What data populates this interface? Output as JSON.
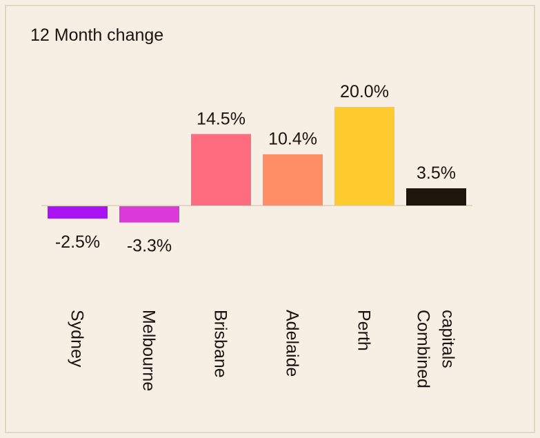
{
  "title": "12 Month change",
  "chart_data": {
    "type": "bar",
    "title": "12 Month change",
    "categories": [
      "Sydney",
      "Melbourne",
      "Brisbane",
      "Adelaide",
      "Perth",
      "Combined capitals"
    ],
    "category_lines": [
      [
        "Sydney"
      ],
      [
        "Melbourne"
      ],
      [
        "Brisbane"
      ],
      [
        "Adelaide"
      ],
      [
        "Perth"
      ],
      [
        "Combined",
        "capitals"
      ]
    ],
    "values": [
      -2.5,
      -3.3,
      14.5,
      10.4,
      20.0,
      3.5
    ],
    "value_labels": [
      "-2.5%",
      "-3.3%",
      "14.5%",
      "10.4%",
      "20.0%",
      "3.5%"
    ],
    "colors": [
      "#a912f2",
      "#d93ad8",
      "#ff6b7f",
      "#ff8e66",
      "#ffca2e",
      "#1e150c"
    ],
    "ylim": [
      -3.3,
      20.0
    ],
    "grid": false,
    "legend": "none"
  },
  "colors": {
    "background": "#f7efe3",
    "border": "#e2d6c5",
    "baseline": "#e2d6c5",
    "text": "#1a1410"
  }
}
